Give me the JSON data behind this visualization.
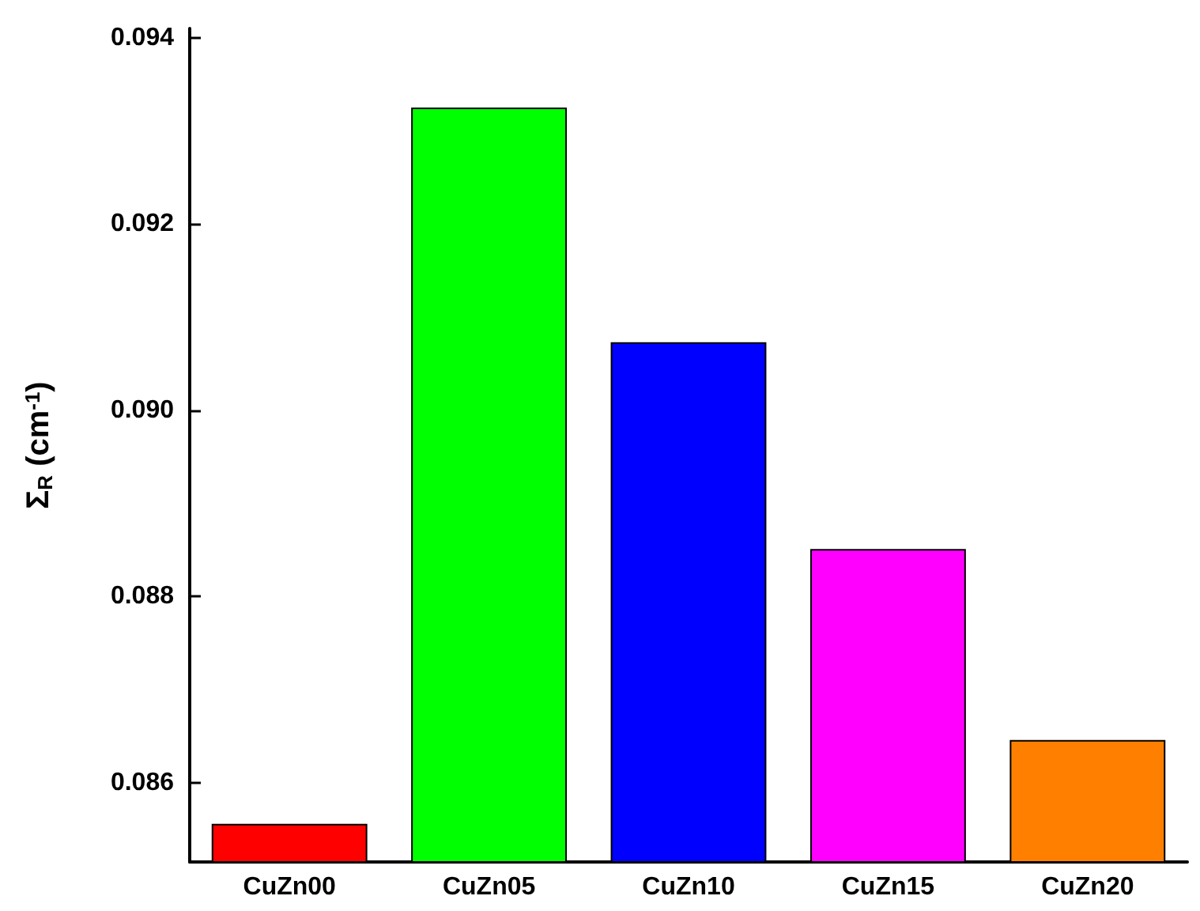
{
  "chart_data": {
    "type": "bar",
    "ylabel": "Σ$_{R}$ (cm$^{-1}$)",
    "categories": [
      "CuZn00",
      "CuZn05",
      "CuZn10",
      "CuZn15",
      "CuZn20"
    ],
    "values": [
      0.08556,
      0.09325,
      0.09073,
      0.08851,
      0.08646
    ],
    "colors": [
      "#ff0000",
      "#00ff00",
      "#0000ff",
      "#ff00ff",
      "#ff8000"
    ],
    "ylim": [
      0.08515,
      0.0941
    ],
    "yticks": [
      0.086,
      0.088,
      {
        "value": 0.09,
        "label": "0.090"
      },
      0.092,
      0.094
    ],
    "grid": false
  }
}
